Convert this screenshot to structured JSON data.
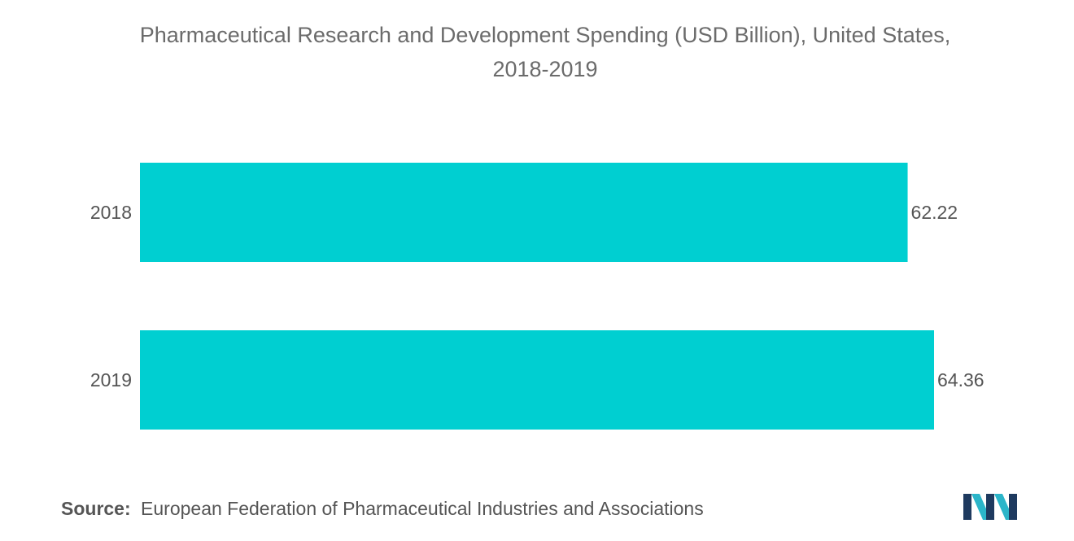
{
  "chart_data": {
    "type": "bar",
    "orientation": "horizontal",
    "title_lines": [
      "Pharmaceutical Research and Development Spending (USD Billion), United States,",
      "2018-2019"
    ],
    "categories": [
      "2018",
      "2019"
    ],
    "values": [
      62.22,
      64.36
    ],
    "value_labels": [
      "62.22",
      "64.36"
    ],
    "xlim": [
      0,
      64.36
    ],
    "grid": false,
    "legend": "none",
    "bar_color": "#00cfd1"
  },
  "footer": {
    "source_label": "Source:",
    "source_text": "European Federation of Pharmaceutical Industries and Associations"
  },
  "logo": {
    "icon": "mordor-intelligence-logo",
    "colors": [
      "#1e3a5f",
      "#2bb5c9"
    ]
  }
}
